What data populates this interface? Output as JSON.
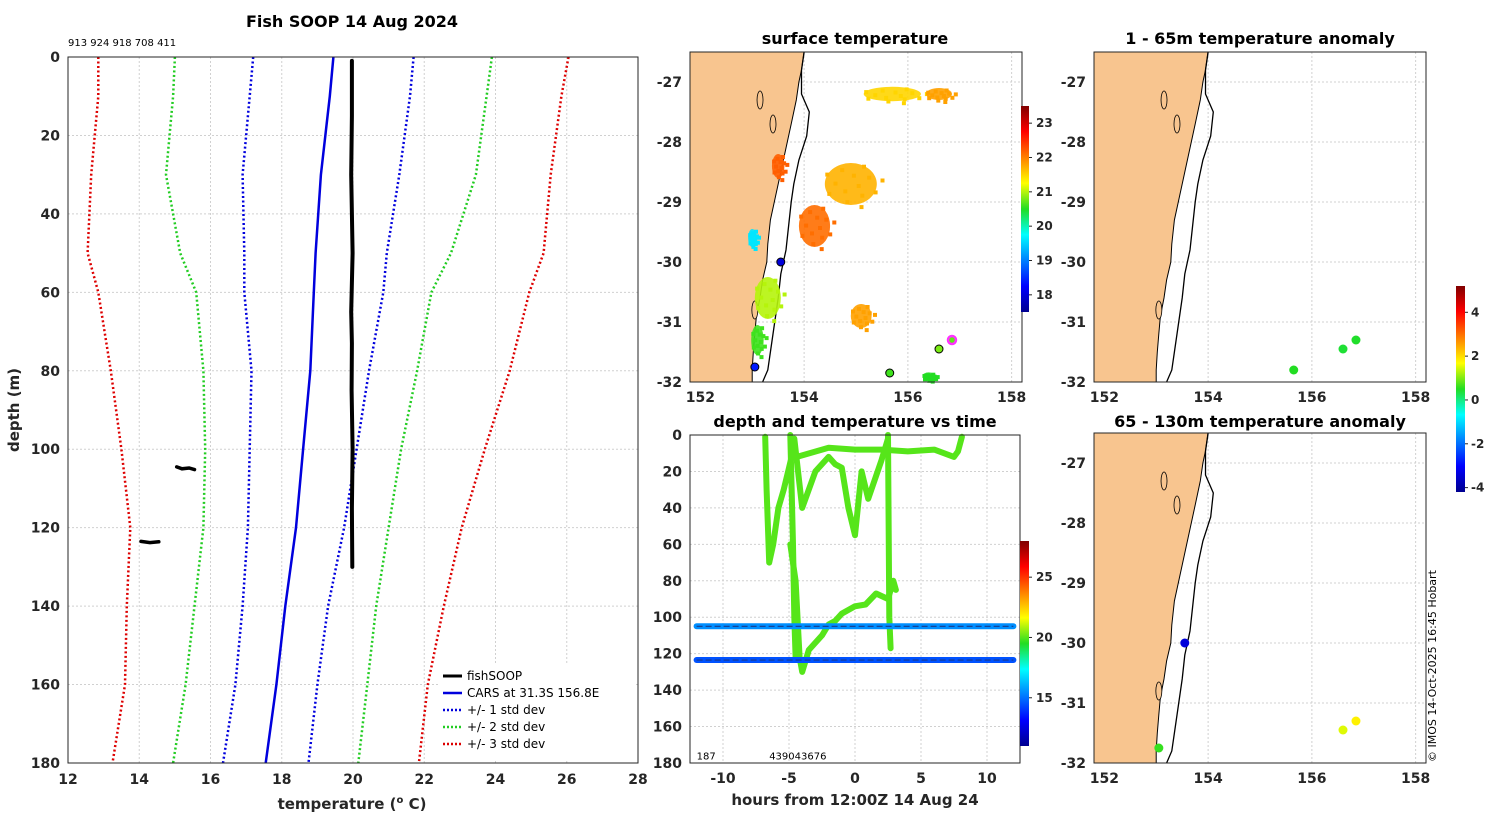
{
  "header": {
    "cast_ids": "913 924 918 708 411"
  },
  "chart_data": [
    {
      "id": "profile",
      "type": "line",
      "title": "Fish SOOP 14 Aug 2024",
      "xlabel_prefix": "temperature (",
      "xlabel_sup": "o",
      "xlabel_suffix": " C)",
      "ylabel": "depth (m)",
      "xlim": [
        12,
        28
      ],
      "ylim": [
        0,
        180
      ],
      "y_inverted": true,
      "xticks": [
        12,
        14,
        16,
        18,
        20,
        22,
        24,
        26,
        28
      ],
      "yticks": [
        0,
        20,
        40,
        60,
        80,
        100,
        120,
        140,
        160,
        180
      ],
      "legend": [
        "fishSOOP",
        "CARS at 31.3S 156.8E",
        "+/- 1 std dev",
        "+/- 2 std dev",
        "+/- 3 std dev"
      ],
      "legend_position": "bottom-right",
      "colors": {
        "fishsoop": "#000000",
        "cars": "#0000dd",
        "std1": "#0000dd",
        "std2": "#22cc22",
        "std3": "#dd0000"
      },
      "cars_depth": [
        0,
        10,
        30,
        50,
        60,
        80,
        100,
        120,
        140,
        160,
        180
      ],
      "cars_mean": [
        19.45,
        19.35,
        19.1,
        18.95,
        18.9,
        18.8,
        18.6,
        18.4,
        18.1,
        17.85,
        17.55
      ],
      "std1_sd": [
        2.25,
        2.25,
        2.2,
        2.0,
        1.95,
        1.65,
        1.5,
        1.35,
        1.2,
        1.15,
        1.2
      ],
      "std2_sd": [
        4.45,
        4.4,
        4.35,
        3.8,
        3.3,
        3.0,
        2.75,
        2.6,
        2.55,
        2.55,
        2.6
      ],
      "std3_sd": [
        6.6,
        6.5,
        6.45,
        6.4,
        6.05,
        5.6,
        5.1,
        4.65,
        4.45,
        4.25,
        4.3
      ],
      "fish_segments": [
        {
          "temp": [
            19.97,
            19.97,
            19.95,
            19.99,
            19.95,
            19.97,
            19.96,
            19.99,
            19.97,
            19.98
          ],
          "depth": [
            1,
            15,
            30,
            50,
            65,
            73,
            85,
            100,
            115,
            130
          ]
        },
        {
          "temp": [
            15.05,
            15.2,
            15.4,
            15.55
          ],
          "depth": [
            104.5,
            105,
            104.8,
            105.2
          ]
        },
        {
          "temp": [
            14.05,
            14.3,
            14.55
          ],
          "depth": [
            123.5,
            123.8,
            123.6
          ]
        }
      ]
    },
    {
      "id": "sst",
      "type": "heatmap",
      "title": "surface temperature",
      "xlim": [
        151.8,
        158.2
      ],
      "ylim": [
        -32,
        -26.5
      ],
      "xticks": [
        152,
        154,
        156,
        158
      ],
      "yticks": [
        -27,
        -28,
        -29,
        -30,
        -31,
        -32
      ],
      "colorbar": {
        "range": [
          17.5,
          23.5
        ],
        "ticks": [
          18,
          19,
          20,
          21,
          22,
          23
        ]
      },
      "sst_patches": [
        {
          "lon": 155.7,
          "lat": -27.2,
          "rx": 0.55,
          "ry": 0.12,
          "t": 21.5
        },
        {
          "lon": 156.6,
          "lat": -27.2,
          "rx": 0.25,
          "ry": 0.1,
          "t": 21.8
        },
        {
          "lon": 154.9,
          "lat": -28.7,
          "rx": 0.5,
          "ry": 0.35,
          "t": 21.7
        },
        {
          "lon": 154.2,
          "lat": -29.4,
          "rx": 0.3,
          "ry": 0.35,
          "t": 22.1
        },
        {
          "lon": 153.5,
          "lat": -28.4,
          "rx": 0.12,
          "ry": 0.2,
          "t": 22.2
        },
        {
          "lon": 153.3,
          "lat": -30.6,
          "rx": 0.25,
          "ry": 0.35,
          "t": 21.0
        },
        {
          "lon": 153.1,
          "lat": -31.3,
          "rx": 0.12,
          "ry": 0.25,
          "t": 20.6
        },
        {
          "lon": 153.0,
          "lat": -29.6,
          "rx": 0.08,
          "ry": 0.15,
          "t": 19.6
        },
        {
          "lon": 155.1,
          "lat": -30.9,
          "rx": 0.2,
          "ry": 0.2,
          "t": 21.8
        },
        {
          "lon": 156.4,
          "lat": -31.9,
          "rx": 0.12,
          "ry": 0.06,
          "t": 20.5
        }
      ],
      "stations": [
        {
          "lon": 153.55,
          "lat": -30.0,
          "t": 18.0
        },
        {
          "lon": 153.05,
          "lat": -31.75,
          "t": 18.4
        },
        {
          "lon": 155.65,
          "lat": -31.85,
          "t": 20.6
        },
        {
          "lon": 156.6,
          "lat": -31.45,
          "t": 20.8
        },
        {
          "lon": 156.85,
          "lat": -31.3,
          "t": 20.7,
          "highlight": true
        }
      ]
    },
    {
      "id": "timeseries",
      "type": "scatter",
      "title": "depth and temperature vs time",
      "xlabel": "hours from 12:00Z 14 Aug 24",
      "xlim": [
        -12.5,
        12.5
      ],
      "ylim": [
        0,
        180
      ],
      "y_inverted": true,
      "xticks": [
        -10,
        -5,
        0,
        5,
        10
      ],
      "yticks": [
        0,
        20,
        40,
        60,
        80,
        100,
        120,
        140,
        160,
        180
      ],
      "colorbar": {
        "range": [
          11,
          28
        ],
        "ticks": [
          15,
          20,
          25
        ]
      },
      "annotations": [
        {
          "text": "187",
          "x": -12.0,
          "y": 178
        },
        {
          "text": "439043676",
          "x": -6.5,
          "y": 178
        }
      ],
      "traces": [
        {
          "name": "fishSOOP 1",
          "temp": 20.0,
          "x": [
            -6.8,
            -6.7,
            -6.5,
            -6.2,
            -5.8,
            -5.4,
            -5.0,
            -4.8,
            -4.6,
            -4.4
          ],
          "y": [
            1,
            30,
            70,
            60,
            40,
            30,
            18,
            12,
            10,
            12
          ]
        },
        {
          "name": "fishSOOP 1b",
          "temp": 20.0,
          "x": [
            -4.4,
            -2.0,
            0.0,
            2.0,
            4.0,
            6.0,
            7.5,
            7.8,
            8.1
          ],
          "y": [
            12,
            7,
            8,
            8,
            9,
            8,
            12,
            9,
            1
          ]
        },
        {
          "name": "fishSOOP 2",
          "temp": 20.0,
          "x": [
            -4.6,
            -4.0,
            -3.0,
            -2.0,
            -1.5,
            -1.0,
            -0.5,
            0.0,
            0.5,
            1.0,
            2.0,
            2.5
          ],
          "y": [
            2,
            40,
            20,
            12,
            16,
            18,
            40,
            55,
            20,
            35,
            14,
            2
          ]
        },
        {
          "name": "fishSOOP 3",
          "temp": 20.0,
          "x": [
            -4.9,
            -4.5,
            -4.2,
            -4.0,
            -3.5,
            -2.5,
            -2.0,
            -1.5,
            -1.0,
            0.0,
            0.8,
            1.6,
            2.5,
            2.9,
            3.1
          ],
          "y": [
            60,
            80,
            122,
            130,
            118,
            110,
            104,
            102,
            98,
            94,
            93,
            87,
            90,
            80,
            85
          ]
        },
        {
          "name": "fishSOOP 3b",
          "temp": 20.0,
          "x": [
            -4.9,
            -4.7,
            -4.6,
            -4.5
          ],
          "y": [
            0,
            60,
            100,
            122
          ]
        },
        {
          "name": "fishSOOP 3c",
          "temp": 20.0,
          "x": [
            2.5,
            2.6,
            2.7
          ],
          "y": [
            0,
            100,
            117
          ]
        },
        {
          "name": "fish 105m",
          "temp": 15.5,
          "x": [
            -12.0,
            12.0
          ],
          "y": [
            105,
            105
          ]
        },
        {
          "name": "fish 124m",
          "temp": 14.5,
          "x": [
            -12.0,
            12.0
          ],
          "y": [
            123.5,
            123.5
          ]
        }
      ]
    },
    {
      "id": "anom_upper",
      "type": "scatter",
      "title": "1 - 65m temperature anomaly",
      "xlim": [
        151.8,
        158.2
      ],
      "ylim": [
        -32,
        -26.5
      ],
      "xticks": [
        152,
        154,
        156,
        158
      ],
      "yticks": [
        -27,
        -28,
        -29,
        -30,
        -31,
        -32
      ],
      "points": [
        {
          "lon": 155.65,
          "lat": -31.8,
          "anomaly": 0.5
        },
        {
          "lon": 156.6,
          "lat": -31.45,
          "anomaly": 0.4
        },
        {
          "lon": 156.85,
          "lat": -31.3,
          "anomaly": 0.45
        }
      ]
    },
    {
      "id": "anom_lower",
      "type": "scatter",
      "title": "65 - 130m temperature anomaly",
      "xlim": [
        151.8,
        158.2
      ],
      "ylim": [
        -32,
        -26.5
      ],
      "xticks": [
        152,
        154,
        156,
        158
      ],
      "yticks": [
        -27,
        -28,
        -29,
        -30,
        -31,
        -32
      ],
      "colorbar": {
        "range": [
          -4.2,
          5.2
        ],
        "ticks": [
          4,
          2,
          0,
          -2,
          -4
        ]
      },
      "points": [
        {
          "lon": 153.55,
          "lat": -30.0,
          "anomaly": -3.4
        },
        {
          "lon": 153.05,
          "lat": -31.75,
          "anomaly": 0.6
        },
        {
          "lon": 156.6,
          "lat": -31.45,
          "anomaly": 1.5
        },
        {
          "lon": 156.85,
          "lat": -31.3,
          "anomaly": 1.8
        }
      ]
    }
  ],
  "map_outline": {
    "coast_lon": [
      154.0,
      153.95,
      153.9,
      153.85,
      153.75,
      153.65,
      153.55,
      153.45,
      153.35,
      153.3,
      153.28,
      153.2,
      153.15,
      153.08,
      153.05,
      153.02,
      153.0,
      153.0
    ],
    "coast_lat": [
      -26.5,
      -26.8,
      -27.0,
      -27.3,
      -27.7,
      -28.1,
      -28.5,
      -28.9,
      -29.3,
      -29.7,
      -30.0,
      -30.3,
      -30.6,
      -30.9,
      -31.2,
      -31.5,
      -31.8,
      -32.0
    ],
    "shelf_lon": [
      154.0,
      153.95,
      153.95,
      154.1,
      154.05,
      153.9,
      153.8,
      153.75,
      153.7,
      153.65,
      153.55,
      153.5,
      153.45,
      153.4,
      153.35,
      153.3,
      153.2
    ],
    "shelf_lat": [
      -26.5,
      -26.8,
      -27.2,
      -27.5,
      -27.9,
      -28.3,
      -28.7,
      -29.0,
      -29.4,
      -29.8,
      -30.2,
      -30.6,
      -30.9,
      -31.2,
      -31.5,
      -31.8,
      -32.0
    ]
  },
  "copyright": "© IMOS 14-Oct-2025 16:45 Hobart"
}
